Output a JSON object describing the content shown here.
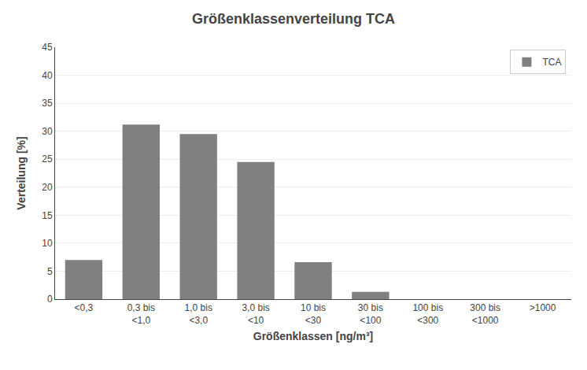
{
  "chart_data": {
    "type": "bar",
    "title": "Größenklassenverteilung TCA",
    "xlabel": "Größenklassen [ng/m³]",
    "ylabel": "Verteilung [%]",
    "categories": [
      "<0,3",
      "0,3 bis\n<1,0",
      "1,0 bis\n<3,0",
      "3,0 bis\n<10",
      "10 bis\n<30",
      "30 bis\n<100",
      "100 bis\n<300",
      "300 bis\n<1000",
      ">1000"
    ],
    "series": [
      {
        "name": "TCA",
        "color": "#808080",
        "values": [
          7.0,
          31.2,
          29.5,
          24.5,
          6.6,
          1.3,
          0.0,
          0.0,
          0.0
        ]
      }
    ],
    "ylim": [
      0,
      45
    ],
    "yticks": [
      0,
      5,
      10,
      15,
      20,
      25,
      30,
      35,
      40,
      45
    ],
    "grid": true,
    "legend": "upper right"
  }
}
